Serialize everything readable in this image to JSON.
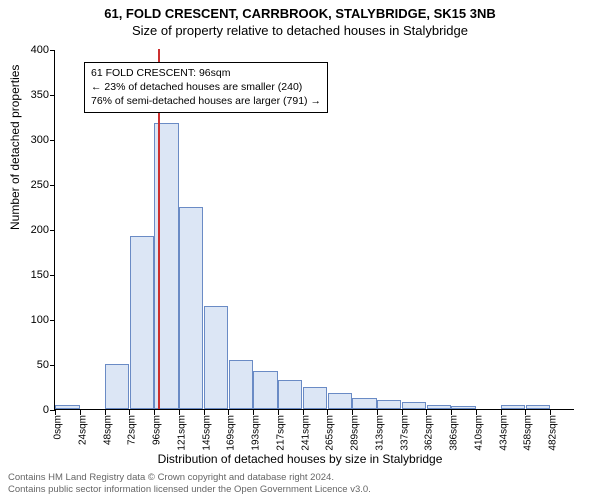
{
  "title": "61, FOLD CRESCENT, CARRBROOK, STALYBRIDGE, SK15 3NB",
  "subtitle": "Size of property relative to detached houses in Stalybridge",
  "ylabel": "Number of detached properties",
  "xlabel": "Distribution of detached houses by size in Stalybridge",
  "chart": {
    "type": "histogram",
    "ylim": [
      0,
      400
    ],
    "yticks": [
      0,
      50,
      100,
      150,
      200,
      250,
      300,
      350,
      400
    ],
    "categories": [
      "0sqm",
      "24sqm",
      "48sqm",
      "72sqm",
      "96sqm",
      "121sqm",
      "145sqm",
      "169sqm",
      "193sqm",
      "217sqm",
      "241sqm",
      "265sqm",
      "289sqm",
      "313sqm",
      "337sqm",
      "362sqm",
      "386sqm",
      "410sqm",
      "434sqm",
      "458sqm",
      "482sqm"
    ],
    "values": [
      5,
      0,
      50,
      192,
      318,
      225,
      115,
      55,
      42,
      32,
      25,
      18,
      12,
      10,
      8,
      5,
      3,
      0,
      5,
      5,
      0
    ],
    "bar_fill": "#dce6f5",
    "bar_stroke": "#6a8bc5",
    "axis_color": "#000000",
    "background_color": "#ffffff",
    "bar_width_ratio": 0.98,
    "label_fontsize": 12,
    "tick_fontsize": 11
  },
  "marker": {
    "x_value_sqm": 96,
    "color": "#cc3030",
    "line_width": 2
  },
  "annotation": {
    "lines": [
      "61 FOLD CRESCENT: 96sqm",
      "← 23% of detached houses are smaller (240)",
      "76% of semi-detached houses are larger (791) →"
    ],
    "border_color": "#000000",
    "background": "#ffffff",
    "fontsize": 10.5
  },
  "footer": {
    "line1": "Contains HM Land Registry data © Crown copyright and database right 2024.",
    "line2": "Contains public sector information licensed under the Open Government Licence v3.0."
  }
}
